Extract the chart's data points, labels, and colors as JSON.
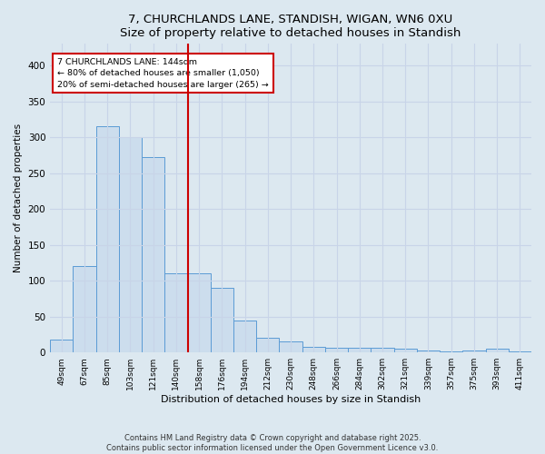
{
  "title": "7, CHURCHLANDS LANE, STANDISH, WIGAN, WN6 0XU",
  "subtitle": "Size of property relative to detached houses in Standish",
  "xlabel": "Distribution of detached houses by size in Standish",
  "ylabel": "Number of detached properties",
  "footer_line1": "Contains HM Land Registry data © Crown copyright and database right 2025.",
  "footer_line2": "Contains public sector information licensed under the Open Government Licence v3.0.",
  "categories": [
    "49sqm",
    "67sqm",
    "85sqm",
    "103sqm",
    "121sqm",
    "140sqm",
    "158sqm",
    "176sqm",
    "194sqm",
    "212sqm",
    "230sqm",
    "248sqm",
    "266sqm",
    "284sqm",
    "302sqm",
    "321sqm",
    "339sqm",
    "357sqm",
    "375sqm",
    "393sqm",
    "411sqm"
  ],
  "values": [
    18,
    120,
    315,
    300,
    272,
    110,
    110,
    90,
    45,
    20,
    15,
    8,
    7,
    7,
    6,
    5,
    3,
    2,
    3,
    5,
    2
  ],
  "bar_color": "#ccdded",
  "bar_edge_color": "#5b9bd5",
  "vline_x": 5.5,
  "vline_color": "#cc0000",
  "annotation_text": "7 CHURCHLANDS LANE: 144sqm\n← 80% of detached houses are smaller (1,050)\n20% of semi-detached houses are larger (265) →",
  "annotation_box_color": "#ffffff",
  "annotation_box_edge_color": "#cc0000",
  "grid_color": "#c8d4e8",
  "background_color": "#dce8f0",
  "ylim": [
    0,
    430
  ],
  "yticks": [
    0,
    50,
    100,
    150,
    200,
    250,
    300,
    350,
    400
  ]
}
